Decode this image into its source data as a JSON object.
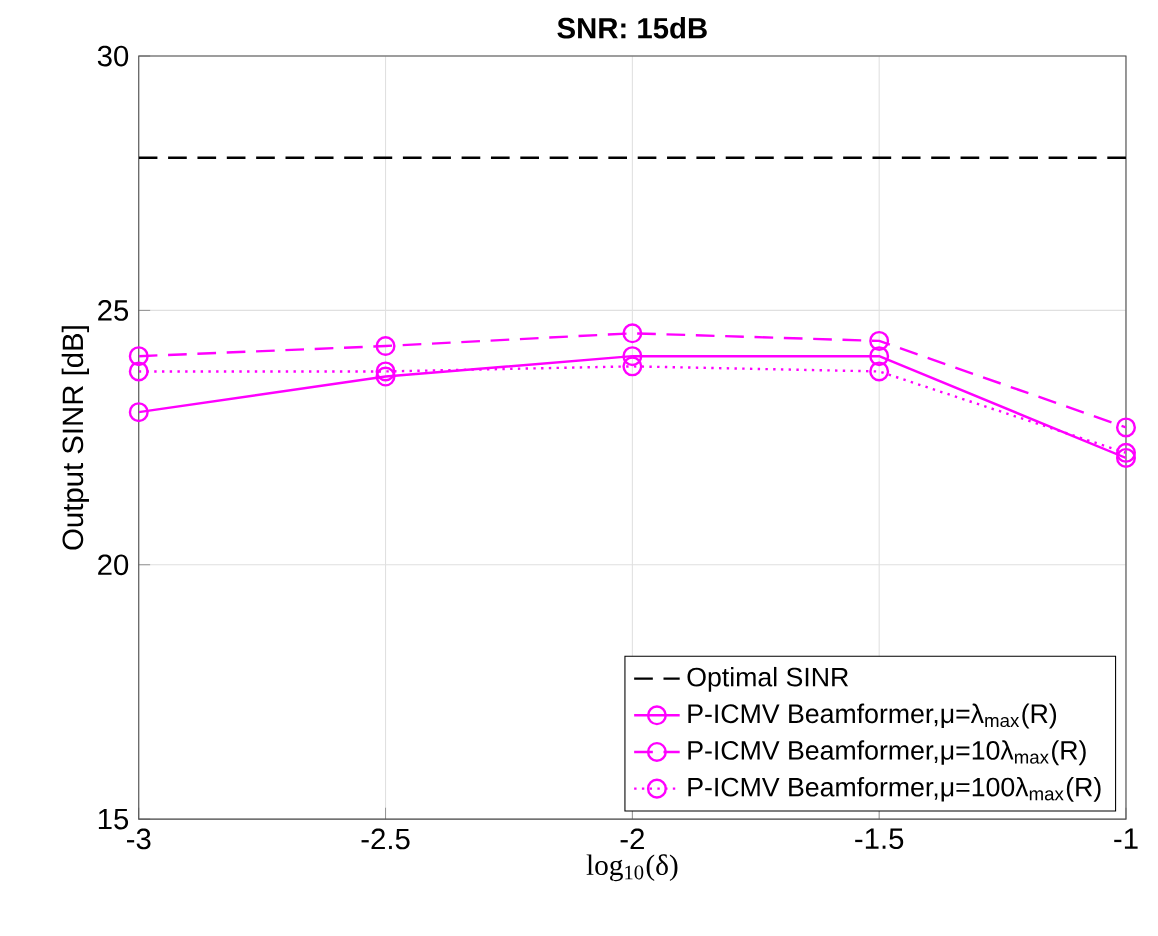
{
  "chart_data": {
    "type": "line",
    "title": "SNR: 15dB",
    "xlabel": "log$_{10}$(δ)",
    "ylabel": "Output SINR [dB]",
    "x": [
      -3,
      -2.5,
      -2,
      -1.5,
      -1
    ],
    "xlim": [
      -3,
      -1
    ],
    "xticks": [
      -3,
      -2.5,
      -2,
      -1.5,
      -1
    ],
    "ylim": [
      15,
      30
    ],
    "yticks": [
      15,
      20,
      25,
      30
    ],
    "grid": true,
    "legend": "bottom right",
    "marker": "circle",
    "series": [
      {
        "name": "Optimal SINR",
        "color": "#000000",
        "line_style": "dashed",
        "marker": "none",
        "values": [
          28,
          28,
          28,
          28,
          28
        ]
      },
      {
        "name": "P-ICMV Beamformer,μ=λ$_{max}$(R)",
        "color": "#ff00ff",
        "line_style": "solid",
        "values": [
          23.0,
          23.7,
          24.1,
          24.1,
          22.1
        ]
      },
      {
        "name": "P-ICMV Beamformer,μ=10λ$_{max}$(R)",
        "color": "#ff00ff",
        "line_style": "dashed",
        "values": [
          24.1,
          24.3,
          24.55,
          24.4,
          22.7
        ]
      },
      {
        "name": "P-ICMV Beamformer,μ=100λ$_{max}$(R)",
        "color": "#ff00ff",
        "line_style": "dotted",
        "values": [
          23.8,
          23.8,
          23.9,
          23.8,
          22.2
        ]
      }
    ]
  }
}
